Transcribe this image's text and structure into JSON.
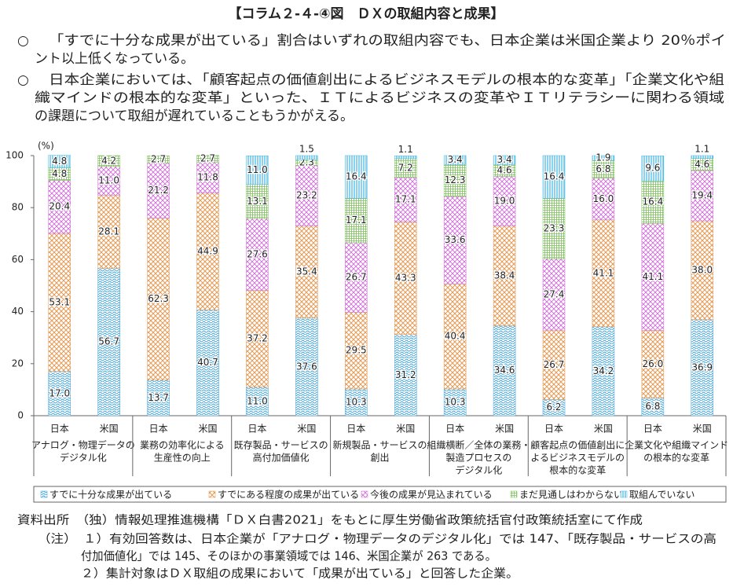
{
  "header": {
    "title": "【コラム２-４-④図　ＤＸの取組内容と成果】"
  },
  "bullets": [
    {
      "marker": "○",
      "lines": [
        "「すでに十分な成果が出ている」割合はいずれの取組内容でも、日本企業は米国企業より 20％ポイ",
        "ント以上低くなっている。"
      ]
    },
    {
      "marker": "○",
      "lines": [
        "日本企業においては、「顧客起点の価値創出によるビジネスモデルの根本的な変革」「企業文化や組",
        "織マインドの根本的な変革」といった、ＩＴによるビジネスの変革やＩＴリテラシーに関わる領域",
        "の課題について取組が遅れていることもうかがえる。"
      ]
    }
  ],
  "chart_data": {
    "type": "stacked_bar",
    "y_label": "(%)",
    "categories": [
      "日本",
      "米国",
      "日本",
      "米国",
      "日本",
      "米国",
      "日本",
      "米国",
      "日本",
      "米国",
      "日本",
      "米国",
      "日本",
      "米国"
    ],
    "groups": [
      [
        "アナログ・物理データの",
        "デジタル化"
      ],
      [
        "業務の効率化による",
        "生産性の向上"
      ],
      [
        "既存製品・サービスの",
        "高付加価値化"
      ],
      [
        "新規製品・サービスの",
        "創出"
      ],
      [
        "組織横断／全体の業務・",
        "製造プロセスの",
        "デジタル化"
      ],
      [
        "顧客起点の価値創出に",
        "よるビジネスモデルの",
        "根本的な変革"
      ],
      [
        "企業文化や組織マインド",
        "の根本的な変革"
      ]
    ],
    "ylim": [
      0,
      100
    ],
    "yticks": [
      0,
      20,
      40,
      60,
      80,
      100
    ],
    "series": [
      {
        "name": "すでに十分な成果が出ている",
        "color": "#3a9fd8",
        "values": [
          17.0,
          56.7,
          13.7,
          40.7,
          11.0,
          37.6,
          10.3,
          31.2,
          10.3,
          34.6,
          6.2,
          34.2,
          6.8,
          36.9
        ],
        "value_labels": [
          "17.0",
          "56.7",
          "13.7",
          "40.7",
          "11.0",
          "37.6",
          "10.3",
          "31.2",
          "10.3",
          "34.6",
          "6.2",
          "34.2",
          "6.8",
          "36.9"
        ]
      },
      {
        "name": "すでにある程度の成果が出ている",
        "color": "#e39a55",
        "values": [
          53.1,
          28.1,
          62.3,
          44.9,
          37.2,
          35.4,
          29.5,
          43.3,
          40.4,
          38.4,
          26.7,
          41.1,
          26.0,
          38.0
        ],
        "value_labels": [
          "53.1",
          "28.1",
          "62.3",
          "44.9",
          "37.2",
          "35.4",
          "29.5",
          "43.3",
          "40.4",
          "38.4",
          "26.7",
          "41.1",
          "26.0",
          "38.0"
        ]
      },
      {
        "name": "今後の成果が見込まれている",
        "color": "#d06ad8",
        "values": [
          20.4,
          11.0,
          21.2,
          11.8,
          27.6,
          23.2,
          26.7,
          17.1,
          33.6,
          19.0,
          27.4,
          16.0,
          41.1,
          19.4
        ],
        "value_labels": [
          "20.4",
          "11.0",
          "21.2",
          "11.8",
          "27.6",
          "23.2",
          "26.7",
          "17.1",
          "33.6",
          "19.0",
          "27.4",
          "16.0",
          "41.1",
          "19.4"
        ]
      },
      {
        "name": "まだ見通しはわからない",
        "color": "#7cbf5a",
        "values": [
          4.8,
          4.2,
          2.7,
          2.7,
          13.1,
          2.3,
          17.1,
          7.2,
          12.3,
          4.6,
          23.3,
          6.8,
          16.4,
          4.6
        ],
        "value_labels": [
          "4.8",
          "4.2",
          "2.7",
          "2.7",
          "13.1",
          "2.3",
          "17.1",
          "7.2",
          "12.3",
          "4.6",
          "23.3",
          "6.8",
          "16.4",
          "4.6"
        ]
      },
      {
        "name": "取組んでいない",
        "color": "#3db6e6",
        "values": [
          4.8,
          null,
          null,
          null,
          11.0,
          1.5,
          16.4,
          1.1,
          3.4,
          3.4,
          16.4,
          1.9,
          9.6,
          1.1
        ],
        "value_labels": [
          "4.8",
          null,
          null,
          null,
          "11.0",
          "1.5",
          "16.4",
          "1.1",
          "3.4",
          "3.4",
          "16.4",
          "1.9",
          "9.6",
          "1.1"
        ]
      }
    ]
  },
  "footer": {
    "source": "資料出所　（独）情報処理推進機構「ＤＸ白書2021」をもとに厚生労働省政策統括官付政策統括室にて作成",
    "notes": [
      "（注）　１）有効回答数は、日本企業が「アナログ・物理データのデジタル化」では 147、「既存製品・サービスの高",
      "付加価値化」では 145、そのほかの事業領域では 146、米国企業が 263 である。",
      "２）集計対象はＤＸ取組の成果において「成果が出ている」と回答した企業。"
    ]
  }
}
